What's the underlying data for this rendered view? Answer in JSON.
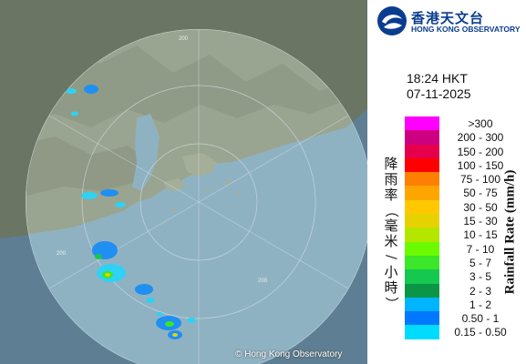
{
  "logo": {
    "name_zh": "香港天文台",
    "name_en": "HONG KONG OBSERVATORY"
  },
  "observation": {
    "time": "18:24 HKT",
    "date": "07-11-2025"
  },
  "legend": {
    "title_zh": "降雨率（毫米/小時）",
    "title_en": "Rainfall Rate (mm/h)",
    "items": [
      {
        "label": ">300",
        "color": "#ff00ff"
      },
      {
        "label": "200 - 300",
        "color": "#cc0080"
      },
      {
        "label": "150 - 200",
        "color": "#e6004c"
      },
      {
        "label": "100 - 150",
        "color": "#ff0000"
      },
      {
        "label": "75 - 100",
        "color": "#ff8000"
      },
      {
        "label": "50 - 75",
        "color": "#ffa500"
      },
      {
        "label": "30 - 50",
        "color": "#ffc800"
      },
      {
        "label": "15 - 30",
        "color": "#e6d200"
      },
      {
        "label": "10 - 15",
        "color": "#b4e600"
      },
      {
        "label": "7 - 10",
        "color": "#6cfa00"
      },
      {
        "label": "5 - 7",
        "color": "#3ce628"
      },
      {
        "label": "3 - 5",
        "color": "#14c850"
      },
      {
        "label": "2 - 3",
        "color": "#0a9646"
      },
      {
        "label": "1 - 2",
        "color": "#00b4ff"
      },
      {
        "label": "0.50 - 1",
        "color": "#0078ff"
      },
      {
        "label": "0.15 - 0.50",
        "color": "#00dcff"
      }
    ]
  },
  "map": {
    "range_labels": [
      "200",
      "200",
      "200"
    ],
    "copyright": "© Hong Kong Observatory"
  }
}
